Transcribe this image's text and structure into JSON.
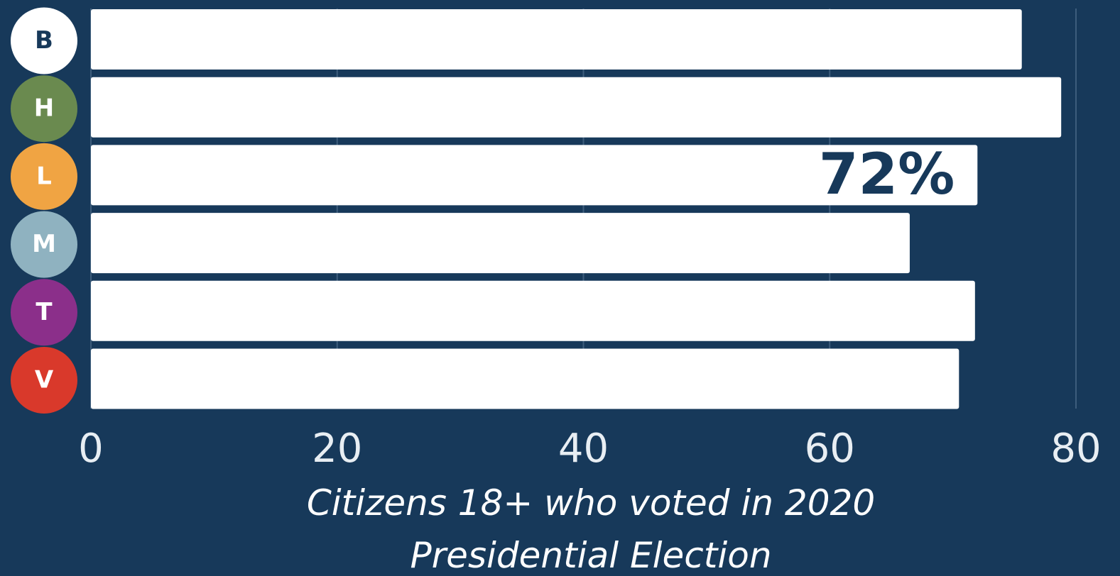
{
  "chart_data": {
    "type": "bar",
    "orientation": "horizontal",
    "categories": [
      "B",
      "H",
      "L",
      "M",
      "T",
      "V"
    ],
    "category_colors": [
      "#ffffff",
      "#6a8a4f",
      "#f0a443",
      "#8fb2c0",
      "#8b2f8a",
      "#d9392b"
    ],
    "category_text_colors": [
      "#17395a",
      "#ffffff",
      "#ffffff",
      "#ffffff",
      "#ffffff",
      "#ffffff"
    ],
    "values": [
      75.6,
      78.8,
      72,
      66.5,
      71.8,
      70.5
    ],
    "value_labels": [
      null,
      null,
      "72%",
      null,
      null,
      null
    ],
    "color": "#ffffff",
    "xlim": [
      0,
      80
    ],
    "xticks": [
      0,
      20,
      40,
      60,
      80
    ],
    "grid": true,
    "x_label": "Citizens 18+ who voted in 2020 Presidential Election"
  }
}
